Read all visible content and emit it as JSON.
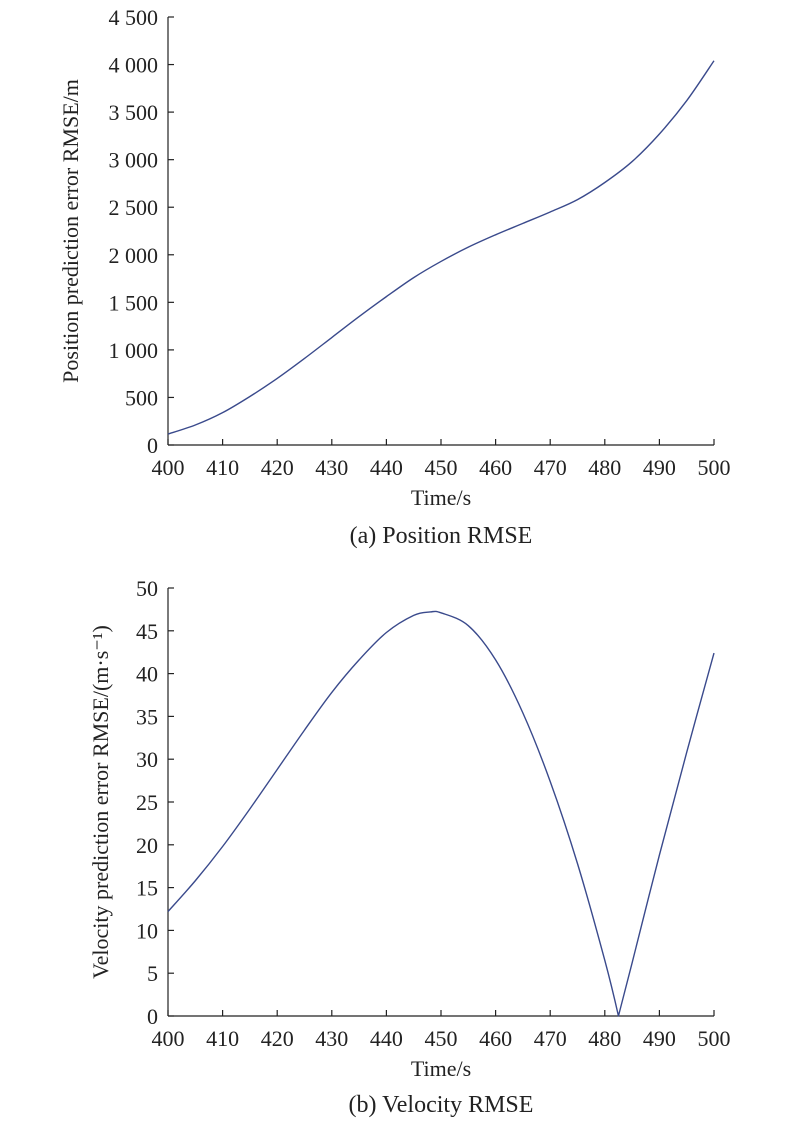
{
  "chart_data": [
    {
      "type": "line",
      "caption": "(a) Position RMSE",
      "xlabel": "Time/s",
      "ylabel": "Position prediction error RMSE/m",
      "xlim": [
        400,
        500
      ],
      "ylim": [
        0,
        4500
      ],
      "x_ticks": [
        400,
        410,
        420,
        430,
        440,
        450,
        460,
        470,
        480,
        490,
        500
      ],
      "y_ticks": [
        0,
        500,
        1000,
        1500,
        2000,
        2500,
        3000,
        3500,
        4000,
        4500
      ],
      "x_tick_labels": [
        "400",
        "410",
        "420",
        "430",
        "440",
        "450",
        "460",
        "470",
        "480",
        "490",
        "500"
      ],
      "y_tick_labels": [
        "0",
        "500",
        "1 000",
        "1 500",
        "2 000",
        "2 500",
        "3 000",
        "3 500",
        "4 000",
        "4 500"
      ],
      "grid": false,
      "line_color": "#3a4a8c",
      "series": [
        {
          "x": [
            400,
            405,
            410,
            415,
            420,
            425,
            430,
            435,
            440,
            445,
            450,
            455,
            460,
            465,
            470,
            475,
            480,
            485,
            490,
            495,
            500
          ],
          "y": [
            115,
            210,
            340,
            510,
            700,
            910,
            1130,
            1350,
            1560,
            1760,
            1930,
            2080,
            2210,
            2330,
            2450,
            2580,
            2760,
            2980,
            3270,
            3620,
            4040
          ]
        }
      ]
    },
    {
      "type": "line",
      "caption": "(b) Velocity RMSE",
      "xlabel": "Time/s",
      "ylabel": "Velocity prediction error RMSE/(m·s⁻¹)",
      "xlim": [
        400,
        500
      ],
      "ylim": [
        0,
        50
      ],
      "x_ticks": [
        400,
        410,
        420,
        430,
        440,
        450,
        460,
        470,
        480,
        490,
        500
      ],
      "y_ticks": [
        0,
        5,
        10,
        15,
        20,
        25,
        30,
        35,
        40,
        45,
        50
      ],
      "x_tick_labels": [
        "400",
        "410",
        "420",
        "430",
        "440",
        "450",
        "460",
        "470",
        "480",
        "490",
        "500"
      ],
      "y_tick_labels": [
        "0",
        "5",
        "10",
        "15",
        "20",
        "25",
        "30",
        "35",
        "40",
        "45",
        "50"
      ],
      "grid": false,
      "line_color": "#3a4a8c",
      "series": [
        {
          "x": [
            400,
            405,
            410,
            415,
            420,
            425,
            430,
            435,
            440,
            445,
            448,
            450,
            455,
            460,
            465,
            470,
            475,
            480,
            482.5,
            485,
            490,
            495,
            500
          ],
          "y": [
            12.2,
            15.8,
            19.8,
            24.2,
            28.8,
            33.4,
            37.8,
            41.6,
            44.8,
            46.8,
            47.2,
            47.1,
            45.6,
            41.6,
            35.4,
            27.4,
            17.8,
            6.5,
            0,
            6.2,
            18.8,
            30.8,
            42.4
          ]
        }
      ]
    }
  ]
}
